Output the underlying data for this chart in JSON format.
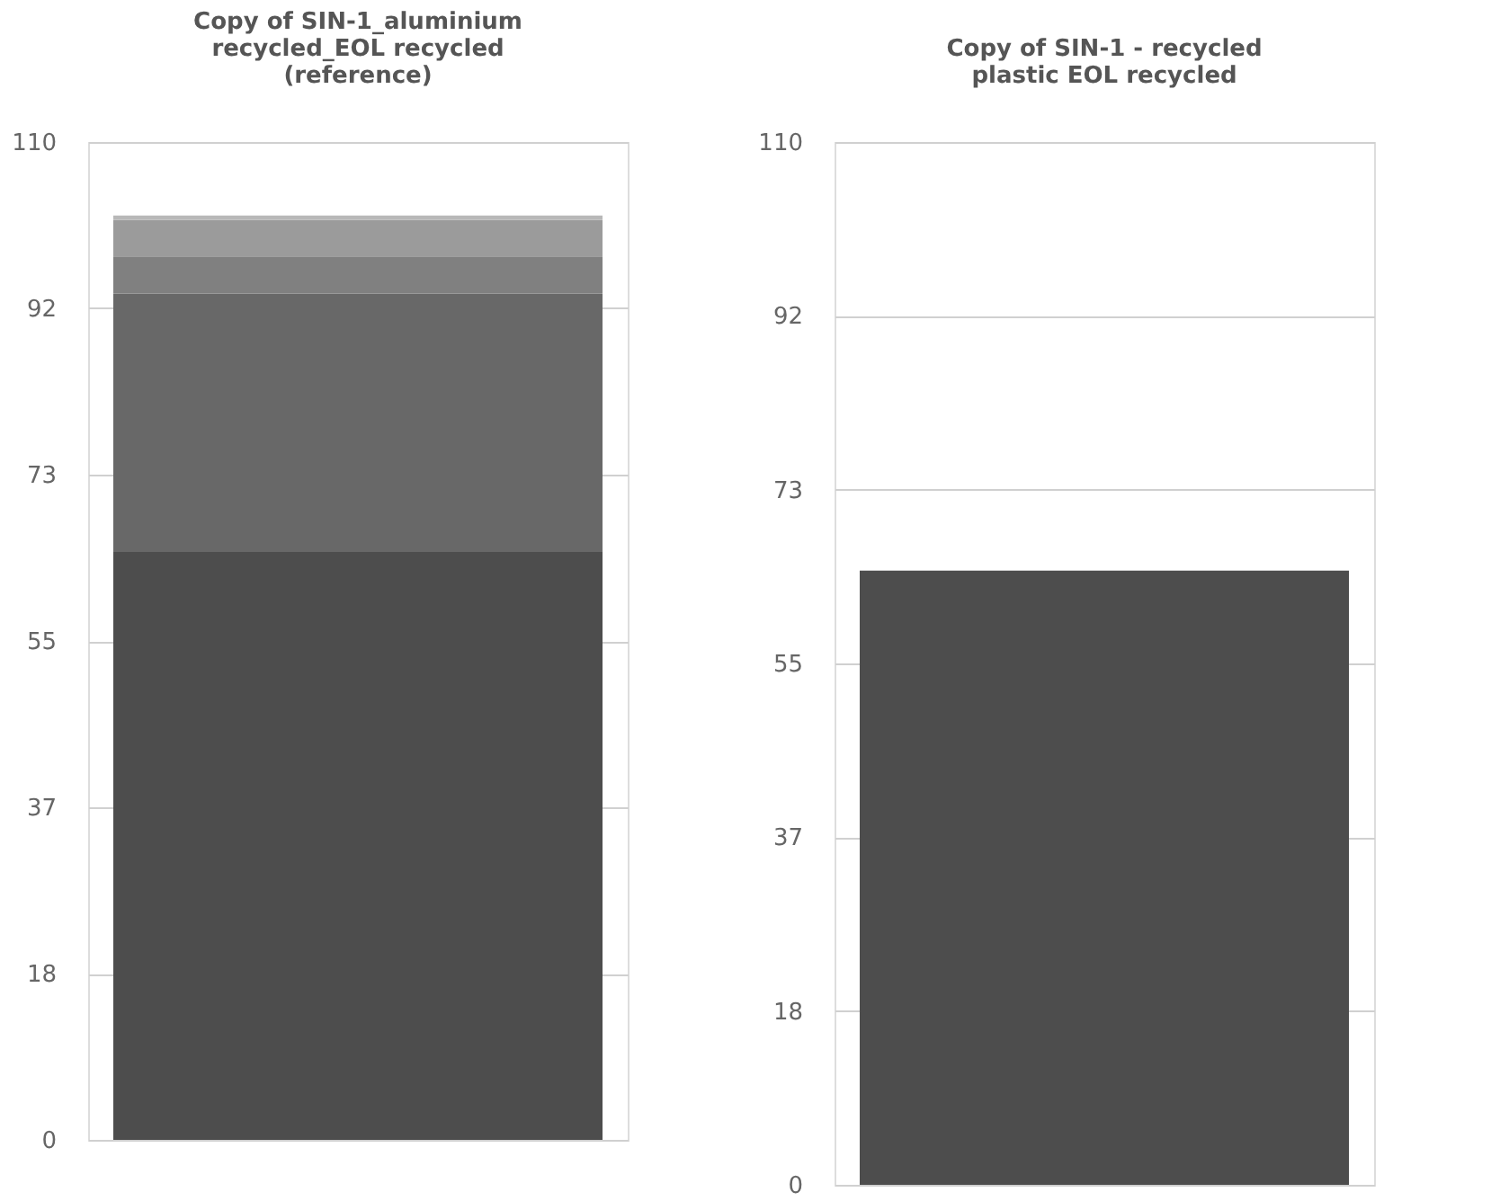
{
  "chart_data": [
    {
      "type": "bar",
      "stacked": true,
      "title": "Copy of SIN-1_aluminium recycled_EOL recycled (reference)",
      "categories": [
        null
      ],
      "series": [
        {
          "color": "#4d4d4d",
          "values": [
            64.8
          ]
        },
        {
          "color": "#686868",
          "values": [
            28.5
          ]
        },
        {
          "color": "#808080",
          "values": [
            4.1
          ]
        },
        {
          "color": "#9b9b9b",
          "values": [
            4.0
          ]
        },
        {
          "color": "#b8b8b8",
          "values": [
            0.5
          ]
        }
      ],
      "ylim": [
        0,
        110
      ],
      "yticks": [
        0,
        {
          "value": 18.33,
          "label": "18"
        },
        {
          "value": 36.67,
          "label": "37"
        },
        55,
        {
          "value": 73.33,
          "label": "73"
        },
        {
          "value": 91.67,
          "label": "92"
        },
        110
      ],
      "grid": "y",
      "legend": false
    },
    {
      "type": "bar",
      "stacked": true,
      "title": "Copy of SIN-1 - recycled plastic EOL recycled",
      "categories": [
        null
      ],
      "series": [
        {
          "color": "#4d4d4d",
          "values": [
            64.8
          ]
        }
      ],
      "ylim": [
        0,
        110
      ],
      "yticks": [
        0,
        {
          "value": 18.33,
          "label": "18"
        },
        {
          "value": 36.67,
          "label": "37"
        },
        55,
        {
          "value": 73.33,
          "label": "73"
        },
        {
          "value": 91.67,
          "label": "92"
        },
        110
      ],
      "grid": "y",
      "legend": false
    }
  ]
}
